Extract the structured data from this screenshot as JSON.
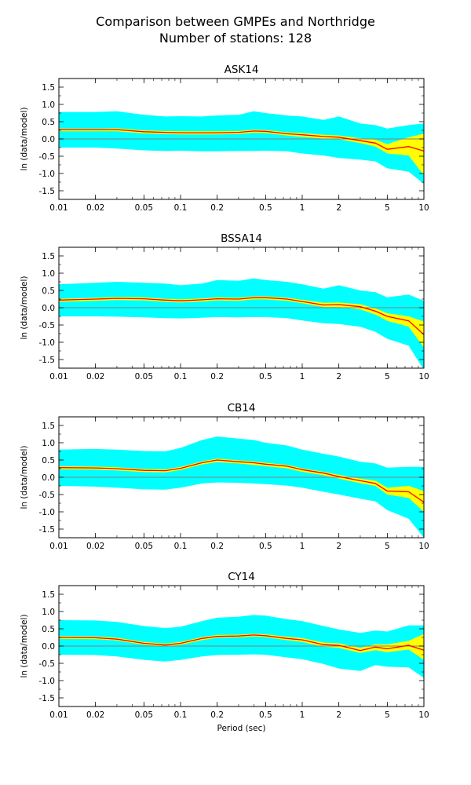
{
  "figure": {
    "title_line1": "Comparison between GMPEs and Northridge",
    "title_line2": "Number of stations: 128"
  },
  "colors": {
    "band_outer": "#00ffff",
    "band_inner": "#ffff00",
    "mean_line": "#ff0000",
    "zero_line": "#808080"
  },
  "chart_data": [
    {
      "type": "area",
      "title": "ASK14",
      "ylabel": "ln (data/model)",
      "xlabel": "",
      "xscale": "log",
      "xlim": [
        0.01,
        10
      ],
      "ylim": [
        -1.75,
        1.75
      ],
      "xticks": [
        0.01,
        0.02,
        0.05,
        0.1,
        0.2,
        0.5,
        1,
        2,
        5,
        10
      ],
      "xtick_labels": [
        "0.01",
        "0.02",
        "0.05",
        "0.1",
        "0.2",
        "0.5",
        "1",
        "2",
        "5",
        "10"
      ],
      "yticks": [
        -1.5,
        -1.0,
        -0.5,
        0.0,
        0.5,
        1.0,
        1.5
      ],
      "ytick_labels": [
        "-1.5",
        "-1.0",
        "-0.5",
        "0.0",
        "0.5",
        "1.0",
        "1.5"
      ],
      "x": [
        0.01,
        0.02,
        0.03,
        0.05,
        0.075,
        0.1,
        0.15,
        0.2,
        0.3,
        0.4,
        0.5,
        0.75,
        1,
        1.5,
        2,
        3,
        4,
        5,
        7.5,
        10
      ],
      "mean": [
        0.27,
        0.27,
        0.27,
        0.21,
        0.19,
        0.18,
        0.18,
        0.18,
        0.19,
        0.23,
        0.22,
        0.15,
        0.12,
        0.07,
        0.05,
        -0.05,
        -0.12,
        -0.3,
        -0.22,
        -0.35
      ],
      "inner_upper": [
        0.3,
        0.3,
        0.31,
        0.25,
        0.23,
        0.22,
        0.22,
        0.22,
        0.23,
        0.27,
        0.26,
        0.19,
        0.17,
        0.12,
        0.1,
        0.02,
        -0.02,
        -0.15,
        0.05,
        0.15
      ],
      "inner_lower": [
        0.22,
        0.22,
        0.22,
        0.16,
        0.14,
        0.13,
        0.13,
        0.13,
        0.14,
        0.18,
        0.17,
        0.1,
        0.06,
        0.01,
        -0.01,
        -0.12,
        -0.22,
        -0.42,
        -0.48,
        -1.05
      ],
      "outer_upper": [
        0.78,
        0.78,
        0.8,
        0.7,
        0.65,
        0.66,
        0.65,
        0.68,
        0.7,
        0.8,
        0.75,
        0.68,
        0.65,
        0.55,
        0.65,
        0.45,
        0.4,
        0.3,
        0.4,
        0.45
      ],
      "outer_lower": [
        -0.25,
        -0.25,
        -0.28,
        -0.33,
        -0.35,
        -0.34,
        -0.36,
        -0.36,
        -0.35,
        -0.35,
        -0.34,
        -0.36,
        -0.42,
        -0.48,
        -0.55,
        -0.6,
        -0.65,
        -0.85,
        -0.95,
        -1.3
      ]
    },
    {
      "type": "area",
      "title": "BSSA14",
      "ylabel": "ln (data/model)",
      "xlabel": "",
      "xscale": "log",
      "xlim": [
        0.01,
        10
      ],
      "ylim": [
        -1.75,
        1.75
      ],
      "xticks": [
        0.01,
        0.02,
        0.05,
        0.1,
        0.2,
        0.5,
        1,
        2,
        5,
        10
      ],
      "xtick_labels": [
        "0.01",
        "0.02",
        "0.05",
        "0.1",
        "0.2",
        "0.5",
        "1",
        "2",
        "5",
        "10"
      ],
      "yticks": [
        -1.5,
        -1.0,
        -0.5,
        0.0,
        0.5,
        1.0,
        1.5
      ],
      "ytick_labels": [
        "-1.5",
        "-1.0",
        "-0.5",
        "0.0",
        "0.5",
        "1.0",
        "1.5"
      ],
      "x": [
        0.01,
        0.02,
        0.03,
        0.05,
        0.075,
        0.1,
        0.15,
        0.2,
        0.3,
        0.4,
        0.5,
        0.75,
        1,
        1.5,
        2,
        3,
        4,
        5,
        7.5,
        10
      ],
      "mean": [
        0.22,
        0.25,
        0.27,
        0.26,
        0.22,
        0.2,
        0.23,
        0.26,
        0.25,
        0.29,
        0.29,
        0.25,
        0.18,
        0.08,
        0.09,
        0.03,
        -0.1,
        -0.25,
        -0.38,
        -0.78
      ],
      "inner_upper": [
        0.26,
        0.29,
        0.31,
        0.3,
        0.26,
        0.24,
        0.27,
        0.3,
        0.29,
        0.33,
        0.33,
        0.29,
        0.23,
        0.14,
        0.15,
        0.1,
        -0.02,
        -0.16,
        -0.25,
        -0.4
      ],
      "inner_lower": [
        0.17,
        0.2,
        0.22,
        0.21,
        0.17,
        0.15,
        0.18,
        0.21,
        0.2,
        0.24,
        0.24,
        0.2,
        0.13,
        0.02,
        0.02,
        -0.05,
        -0.2,
        -0.38,
        -0.55,
        -1.15
      ],
      "outer_upper": [
        0.68,
        0.72,
        0.75,
        0.72,
        0.7,
        0.65,
        0.7,
        0.8,
        0.78,
        0.85,
        0.8,
        0.75,
        0.68,
        0.55,
        0.65,
        0.5,
        0.45,
        0.3,
        0.38,
        0.2
      ],
      "outer_lower": [
        -0.25,
        -0.25,
        -0.26,
        -0.28,
        -0.3,
        -0.31,
        -0.29,
        -0.27,
        -0.28,
        -0.27,
        -0.27,
        -0.3,
        -0.37,
        -0.45,
        -0.47,
        -0.55,
        -0.7,
        -0.9,
        -1.1,
        -1.8
      ]
    },
    {
      "type": "area",
      "title": "CB14",
      "ylabel": "ln (data/model)",
      "xlabel": "",
      "xscale": "log",
      "xlim": [
        0.01,
        10
      ],
      "ylim": [
        -1.75,
        1.75
      ],
      "xticks": [
        0.01,
        0.02,
        0.05,
        0.1,
        0.2,
        0.5,
        1,
        2,
        5,
        10
      ],
      "xtick_labels": [
        "0.01",
        "0.02",
        "0.05",
        "0.1",
        "0.2",
        "0.5",
        "1",
        "2",
        "5",
        "10"
      ],
      "yticks": [
        -1.5,
        -1.0,
        -0.5,
        0.0,
        0.5,
        1.0,
        1.5
      ],
      "ytick_labels": [
        "-1.5",
        "-1.0",
        "-0.5",
        "0.0",
        "0.5",
        "1.0",
        "1.5"
      ],
      "x": [
        0.01,
        0.02,
        0.03,
        0.05,
        0.075,
        0.1,
        0.15,
        0.2,
        0.3,
        0.4,
        0.5,
        0.75,
        1,
        1.5,
        2,
        3,
        4,
        5,
        7.5,
        10
      ],
      "mean": [
        0.28,
        0.27,
        0.25,
        0.2,
        0.19,
        0.26,
        0.42,
        0.5,
        0.45,
        0.42,
        0.38,
        0.32,
        0.22,
        0.12,
        0.02,
        -0.1,
        -0.18,
        -0.4,
        -0.42,
        -0.72
      ],
      "inner_upper": [
        0.32,
        0.31,
        0.29,
        0.24,
        0.23,
        0.3,
        0.46,
        0.54,
        0.49,
        0.46,
        0.42,
        0.36,
        0.26,
        0.16,
        0.07,
        -0.04,
        -0.1,
        -0.3,
        -0.25,
        -0.4
      ],
      "inner_lower": [
        0.23,
        0.22,
        0.2,
        0.15,
        0.14,
        0.21,
        0.37,
        0.44,
        0.4,
        0.36,
        0.32,
        0.26,
        0.16,
        0.06,
        -0.04,
        -0.17,
        -0.25,
        -0.5,
        -0.6,
        -1.0
      ],
      "outer_upper": [
        0.8,
        0.82,
        0.8,
        0.76,
        0.75,
        0.85,
        1.08,
        1.18,
        1.12,
        1.08,
        1.0,
        0.92,
        0.8,
        0.68,
        0.6,
        0.45,
        0.4,
        0.28,
        0.3,
        0.3
      ],
      "outer_lower": [
        -0.25,
        -0.27,
        -0.3,
        -0.35,
        -0.36,
        -0.3,
        -0.18,
        -0.15,
        -0.16,
        -0.18,
        -0.2,
        -0.24,
        -0.3,
        -0.42,
        -0.5,
        -0.62,
        -0.7,
        -0.95,
        -1.2,
        -1.75
      ]
    },
    {
      "type": "area",
      "title": "CY14",
      "ylabel": "ln (data/model)",
      "xlabel": "Period (sec)",
      "xscale": "log",
      "xlim": [
        0.01,
        10
      ],
      "ylim": [
        -1.75,
        1.75
      ],
      "xticks": [
        0.01,
        0.02,
        0.05,
        0.1,
        0.2,
        0.5,
        1,
        2,
        5,
        10
      ],
      "xtick_labels": [
        "0.01",
        "0.02",
        "0.05",
        "0.1",
        "0.2",
        "0.5",
        "1",
        "2",
        "5",
        "10"
      ],
      "yticks": [
        -1.5,
        -1.0,
        -0.5,
        0.0,
        0.5,
        1.0,
        1.5
      ],
      "ytick_labels": [
        "-1.5",
        "-1.0",
        "-0.5",
        "0.0",
        "0.5",
        "1.0",
        "1.5"
      ],
      "x": [
        0.01,
        0.02,
        0.03,
        0.05,
        0.075,
        0.1,
        0.15,
        0.2,
        0.3,
        0.4,
        0.5,
        0.75,
        1,
        1.5,
        2,
        3,
        4,
        5,
        7.5,
        10
      ],
      "mean": [
        0.25,
        0.24,
        0.2,
        0.08,
        0.03,
        0.08,
        0.22,
        0.28,
        0.29,
        0.32,
        0.3,
        0.22,
        0.18,
        0.04,
        0.02,
        -0.13,
        -0.03,
        -0.08,
        0.02,
        -0.12
      ],
      "inner_upper": [
        0.29,
        0.28,
        0.24,
        0.12,
        0.07,
        0.12,
        0.26,
        0.32,
        0.33,
        0.36,
        0.34,
        0.27,
        0.23,
        0.1,
        0.08,
        -0.05,
        0.05,
        0.05,
        0.15,
        0.35
      ],
      "inner_lower": [
        0.21,
        0.2,
        0.16,
        0.04,
        -0.01,
        0.04,
        0.17,
        0.24,
        0.25,
        0.28,
        0.26,
        0.17,
        0.12,
        -0.02,
        -0.05,
        -0.2,
        -0.12,
        -0.18,
        -0.1,
        -0.4
      ],
      "outer_upper": [
        0.75,
        0.74,
        0.7,
        0.58,
        0.52,
        0.56,
        0.72,
        0.82,
        0.85,
        0.9,
        0.88,
        0.78,
        0.72,
        0.58,
        0.48,
        0.38,
        0.45,
        0.42,
        0.6,
        0.6
      ],
      "outer_lower": [
        -0.25,
        -0.26,
        -0.3,
        -0.4,
        -0.45,
        -0.4,
        -0.3,
        -0.26,
        -0.25,
        -0.24,
        -0.25,
        -0.33,
        -0.38,
        -0.52,
        -0.65,
        -0.72,
        -0.55,
        -0.6,
        -0.62,
        -0.92
      ]
    }
  ]
}
